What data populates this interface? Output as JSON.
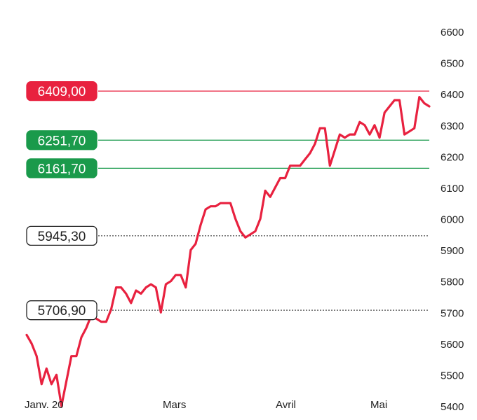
{
  "chart_data": {
    "type": "line",
    "title": "",
    "xlabel": "",
    "ylabel": "",
    "ylim": [
      5400,
      6600
    ],
    "yticks": [
      5400,
      5500,
      5600,
      5700,
      5800,
      5900,
      6000,
      6100,
      6200,
      6300,
      6400,
      6500,
      6600
    ],
    "x_tick_labels": [
      "Janv. 20",
      "Mars",
      "Avril",
      "Mai"
    ],
    "series": [
      {
        "color": "#e8213f",
        "values": [
          5628,
          5600,
          5560,
          5470,
          5520,
          5470,
          5500,
          5400,
          5480,
          5560,
          5560,
          5620,
          5650,
          5690,
          5680,
          5670,
          5670,
          5710,
          5780,
          5780,
          5760,
          5730,
          5770,
          5760,
          5780,
          5790,
          5780,
          5700,
          5790,
          5800,
          5820,
          5820,
          5780,
          5900,
          5920,
          5980,
          6030,
          6040,
          6040,
          6050,
          6050,
          6050,
          6000,
          5960,
          5940,
          5950,
          5960,
          6000,
          6090,
          6070,
          6100,
          6130,
          6130,
          6170,
          6170,
          6170,
          6190,
          6210,
          6240,
          6290,
          6290,
          6170,
          6220,
          6270,
          6260,
          6270,
          6270,
          6310,
          6300,
          6270,
          6300,
          6260,
          6340,
          6360,
          6380,
          6380,
          6270,
          6280,
          6290,
          6390,
          6370,
          6360
        ]
      }
    ],
    "levels": [
      {
        "label": "6409,00",
        "value": 6409.0,
        "color": "#e8213f",
        "style": "solid"
      },
      {
        "label": "6251,70",
        "value": 6251.7,
        "color": "#1a9a4b",
        "style": "solid"
      },
      {
        "label": "6161,70",
        "value": 6161.7,
        "color": "#1a9a4b",
        "style": "solid"
      },
      {
        "label": "5945,30",
        "value": 5945.3,
        "color": "#222222",
        "style": "dotted"
      },
      {
        "label": "5706,90",
        "value": 5706.9,
        "color": "#222222",
        "style": "dotted"
      }
    ],
    "grid": false,
    "legend": "none"
  }
}
